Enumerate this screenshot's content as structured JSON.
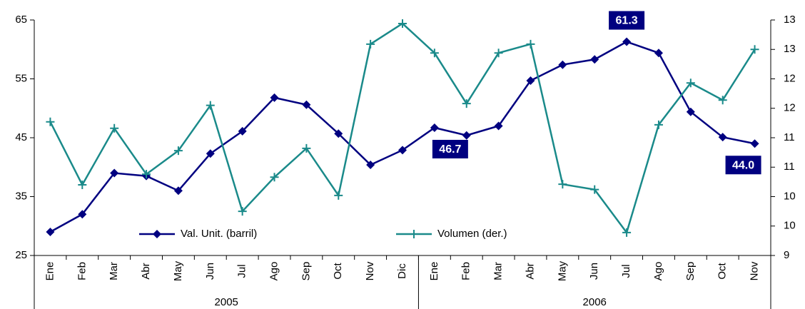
{
  "chart_data": {
    "type": "line",
    "categories": [
      "Ene",
      "Feb",
      "Mar",
      "Abr",
      "May",
      "Jun",
      "Jul",
      "Ago",
      "Sep",
      "Oct",
      "Nov",
      "Dic",
      "Ene",
      "Feb",
      "Mar",
      "Abr",
      "May",
      "Jun",
      "Jul",
      "Ago",
      "Sep",
      "Oct",
      "Nov"
    ],
    "x_groups": [
      "2005",
      "2006"
    ],
    "series": [
      {
        "name": "Val. Unit. (barril)",
        "color": "#000080",
        "marker": "diamond",
        "values": [
          29.0,
          32.0,
          39.0,
          38.5,
          36.0,
          42.3,
          46.1,
          51.8,
          50.6,
          45.7,
          40.4,
          42.9,
          46.7,
          45.4,
          47.0,
          54.7,
          57.4,
          58.3,
          61.3,
          59.4,
          49.4,
          45.1,
          44.0
        ],
        "value_labels": [
          null,
          null,
          null,
          null,
          null,
          null,
          null,
          null,
          null,
          null,
          null,
          null,
          "46.7",
          null,
          null,
          null,
          null,
          null,
          "61.3",
          null,
          null,
          null,
          "44.0"
        ]
      },
      {
        "name": "Volumen (der.)",
        "color": "#1a8a8a",
        "marker": "plus",
        "axis": "y2",
        "values": [
          11.27,
          10.2,
          11.16,
          10.38,
          10.78,
          11.55,
          9.75,
          10.33,
          10.82,
          10.02,
          12.59,
          12.94,
          12.44,
          11.58,
          12.44,
          12.59,
          10.21,
          10.12,
          9.39,
          11.22,
          11.93,
          11.64,
          12.5
        ]
      }
    ],
    "ylim": [
      25,
      65
    ],
    "yticks": [
      25,
      35,
      45,
      55,
      65
    ],
    "y2lim": [
      9,
      13
    ],
    "y2ticks": [
      9,
      {
        "value": 9.5,
        "label": "10"
      },
      10,
      {
        "value": 10.5,
        "label": "11"
      },
      11,
      {
        "value": 11.5,
        "label": "12"
      },
      12,
      {
        "value": 12.5,
        "label": "13"
      },
      13
    ],
    "grid": false
  }
}
